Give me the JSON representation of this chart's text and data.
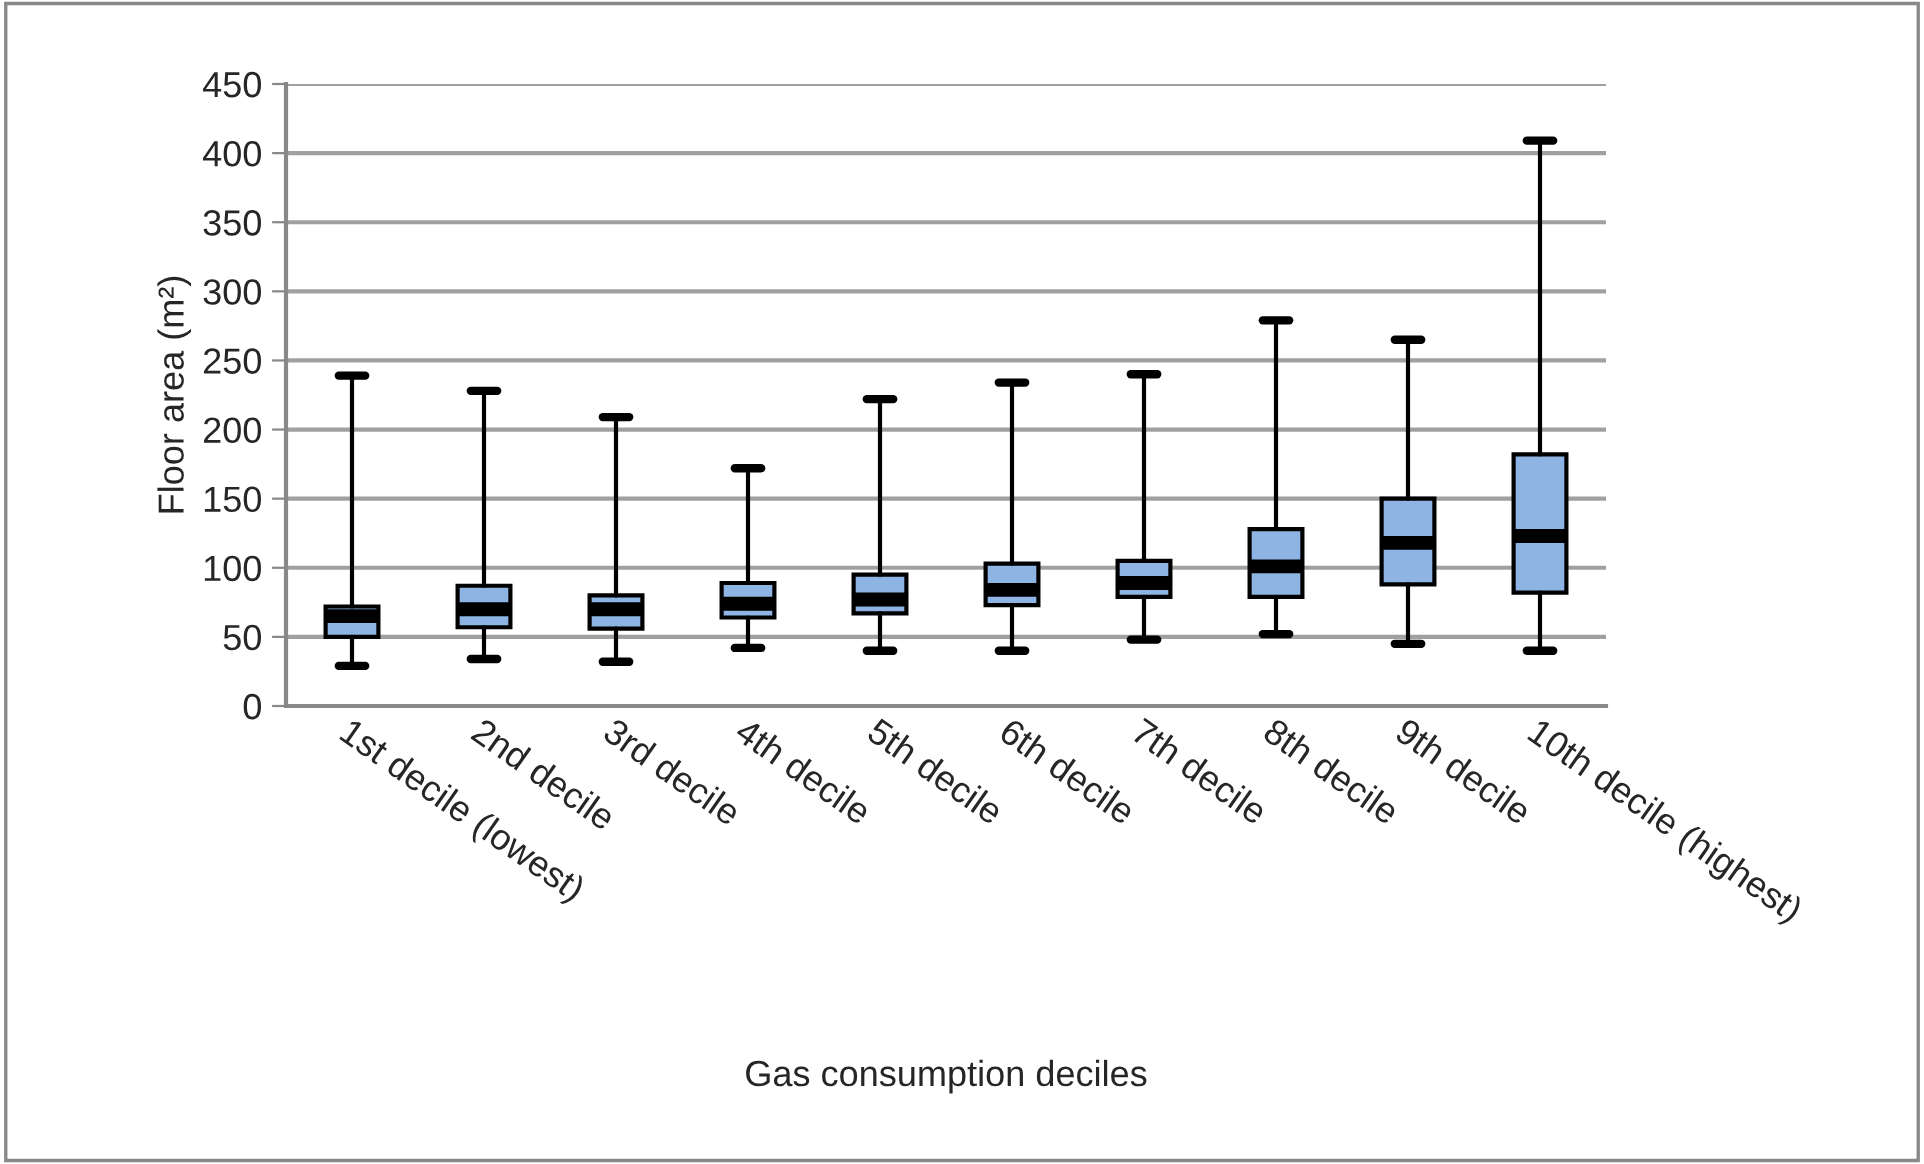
{
  "chart_data": {
    "type": "box",
    "xlabel": "Gas consumption deciles",
    "ylabel": "Floor area (m²)",
    "categories": [
      "1st decile (lowest)",
      "2nd decile",
      "3rd decile",
      "4th decile",
      "5th decile",
      "6th decile",
      "7th decile",
      "8th decile",
      "9th decile",
      "10th decile (highest)"
    ],
    "color": "#8db4e2",
    "boxes": [
      {
        "low": 29,
        "q1": 50,
        "median": 65,
        "q3": 72,
        "high": 239
      },
      {
        "low": 34,
        "q1": 57,
        "median": 70,
        "q3": 87,
        "high": 228
      },
      {
        "low": 32,
        "q1": 56,
        "median": 70,
        "q3": 80,
        "high": 209
      },
      {
        "low": 42,
        "q1": 64,
        "median": 74,
        "q3": 89,
        "high": 172
      },
      {
        "low": 40,
        "q1": 67,
        "median": 77,
        "q3": 95,
        "high": 222
      },
      {
        "low": 40,
        "q1": 73,
        "median": 84,
        "q3": 103,
        "high": 234
      },
      {
        "low": 48,
        "q1": 79,
        "median": 89,
        "q3": 105,
        "high": 240
      },
      {
        "low": 52,
        "q1": 79,
        "median": 101,
        "q3": 128,
        "high": 279
      },
      {
        "low": 45,
        "q1": 88,
        "median": 118,
        "q3": 150,
        "high": 265
      },
      {
        "low": 40,
        "q1": 82,
        "median": 123,
        "q3": 182,
        "high": 409
      }
    ],
    "ylim": [
      0,
      450
    ],
    "yticks": [
      0,
      50,
      100,
      150,
      200,
      250,
      300,
      350,
      400,
      450
    ],
    "grid": "y"
  }
}
